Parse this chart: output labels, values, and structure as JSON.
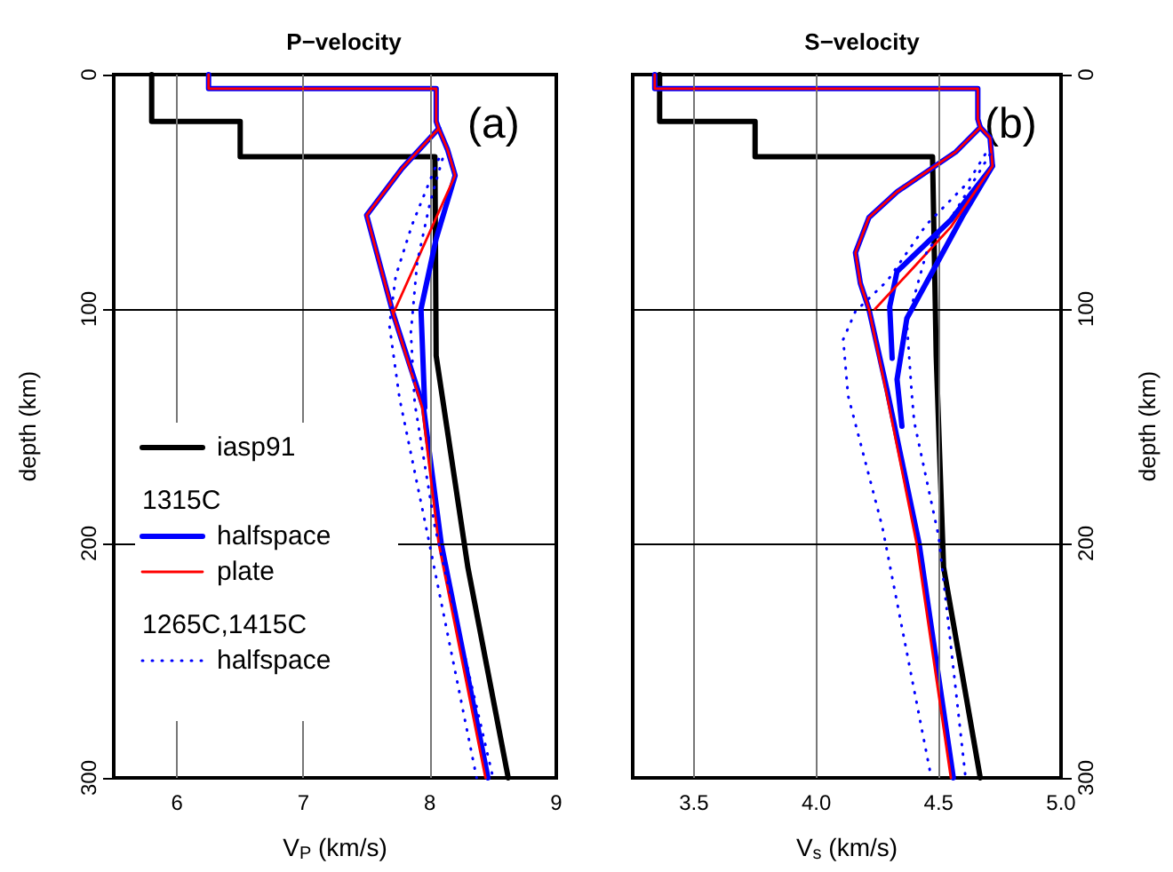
{
  "chart_data": [
    {
      "type": "line",
      "title": "P−velocity",
      "xlabel": "V$_{P}$ (km/s)",
      "ylabel": "depth (km)",
      "xlim": [
        5.5,
        9
      ],
      "xticks": [
        6,
        7,
        8,
        9
      ],
      "ylim": [
        300,
        0
      ],
      "yticks": [
        0,
        100,
        200,
        300
      ],
      "grid": true,
      "legend": "left",
      "annotations": [
        "(a)",
        "1315C",
        "1265C,1415C"
      ],
      "series": [
        {
          "name": "iasp91",
          "color": "#000000",
          "line_style": "solid",
          "x": [
            5.8,
            5.8,
            6.5,
            6.5,
            8.04,
            8.05,
            8.3,
            8.62
          ],
          "values": [
            0,
            20,
            20,
            35,
            35,
            120,
            210,
            300
          ]
        },
        {
          "name": "halfspace",
          "color": "#0000ff",
          "line_style": "solid",
          "x": [
            6.25,
            6.25,
            8.05,
            8.05,
            8.07,
            7.78,
            7.5,
            7.71,
            7.95,
            8.09,
            8.46
          ],
          "values": [
            0,
            6,
            6,
            20,
            23,
            40,
            60,
            102,
            142,
            200,
            300
          ]
        },
        {
          "color": "#0000ff",
          "line_style": "solid",
          "x": [
            8.07,
            8.14,
            8.2,
            8.05,
            7.93,
            7.96
          ],
          "values": [
            23,
            32,
            43,
            70,
            100,
            142
          ]
        },
        {
          "name": "plate",
          "color": "#ff0000",
          "line_style": "solid",
          "x": [
            6.25,
            6.25,
            8.05,
            8.05,
            8.07,
            7.78,
            7.5,
            7.71,
            7.94,
            8.07,
            8.44
          ],
          "values": [
            0,
            6,
            6,
            20,
            23,
            40,
            60,
            102,
            142,
            200,
            300
          ]
        },
        {
          "color": "#ff0000",
          "line_style": "solid",
          "x": [
            8.07,
            8.14,
            8.2,
            7.71
          ],
          "values": [
            23,
            32,
            43,
            102
          ]
        },
        {
          "name": "halfspace",
          "color": "#0000ff",
          "line_style": "dotted",
          "x": [
            8.07,
            7.86,
            7.73,
            7.68,
            7.76,
            7.97,
            8.37
          ],
          "values": [
            36,
            64,
            86,
            107,
            138,
            193,
            300
          ]
        },
        {
          "color": "#0000ff",
          "line_style": "dotted",
          "x": [
            8.1,
            8.0,
            7.9,
            7.85,
            7.88,
            8.04,
            8.5
          ],
          "values": [
            36,
            55,
            80,
            110,
            140,
            193,
            300
          ]
        }
      ]
    },
    {
      "type": "line",
      "title": "S−velocity",
      "xlabel": "V$_{s}$ (km/s)",
      "ylabel": "depth (km)",
      "xlim": [
        3.25,
        5
      ],
      "xticks": [
        3.5,
        {
          "value": 4,
          "label": "4.0"
        },
        4.5,
        {
          "value": 5,
          "label": "5.0"
        }
      ],
      "ylim": [
        300,
        0
      ],
      "yticks": [
        0,
        100,
        200,
        300
      ],
      "grid": true,
      "annotations": [
        "(b)"
      ],
      "series": [
        {
          "color": "#000000",
          "line_style": "solid",
          "x": [
            3.36,
            3.36,
            3.75,
            3.75,
            4.475,
            4.49,
            4.52,
            4.67
          ],
          "values": [
            0,
            20,
            20,
            35,
            35,
            120,
            210,
            300
          ]
        },
        {
          "color": "#0000ff",
          "line_style": "solid",
          "x": [
            3.34,
            3.34,
            4.66,
            4.66,
            4.67,
            4.57,
            4.33,
            4.215,
            4.16,
            4.18,
            4.215,
            4.29,
            4.42,
            4.56
          ],
          "values": [
            0,
            6,
            6,
            19,
            22.5,
            33,
            50,
            61,
            76,
            89,
            100,
            135,
            200,
            300
          ]
        },
        {
          "color": "#0000ff",
          "line_style": "solid",
          "x": [
            4.67,
            4.71,
            4.72,
            4.6,
            4.475,
            4.37,
            4.33,
            4.35
          ],
          "values": [
            22.5,
            27,
            39,
            60,
            84,
            104,
            130,
            150
          ]
        },
        {
          "color": "#0000ff",
          "line_style": "solid",
          "x": [
            4.72,
            4.55,
            4.33,
            4.3,
            4.31
          ],
          "values": [
            39,
            62,
            84,
            99,
            121
          ]
        },
        {
          "color": "#ff0000",
          "line_style": "solid",
          "x": [
            3.34,
            3.34,
            4.66,
            4.66,
            4.67,
            4.57,
            4.33,
            4.215,
            4.16,
            4.18,
            4.215,
            4.285,
            4.41,
            4.55
          ],
          "values": [
            0,
            6,
            6,
            19,
            22.5,
            33,
            50,
            61,
            76,
            89,
            100,
            135,
            200,
            300
          ]
        },
        {
          "color": "#ff0000",
          "line_style": "solid",
          "x": [
            4.67,
            4.71,
            4.72,
            4.55,
            4.4,
            4.24
          ],
          "values": [
            22.5,
            27,
            39,
            65,
            82,
            100
          ]
        },
        {
          "color": "#0000ff",
          "line_style": "dotted",
          "x": [
            4.69,
            4.62,
            4.45,
            4.29,
            4.16,
            4.11,
            4.13,
            4.27,
            4.47
          ],
          "values": [
            34,
            46,
            64,
            88,
            101,
            113,
            137,
            193,
            300
          ]
        },
        {
          "color": "#0000ff",
          "line_style": "dotted",
          "x": [
            4.71,
            4.57,
            4.45,
            4.37,
            4.39,
            4.4,
            4.5,
            4.61
          ],
          "values": [
            34,
            58,
            76,
            106,
            136,
            148,
            197,
            300
          ]
        }
      ]
    }
  ]
}
